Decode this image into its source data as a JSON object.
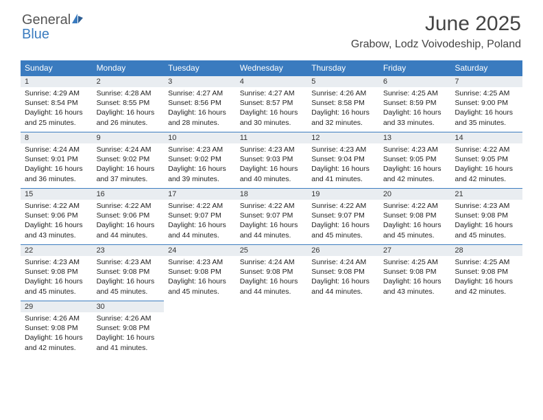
{
  "logo": {
    "top": "General",
    "bottom": "Blue"
  },
  "title": "June 2025",
  "location": "Grabow, Lodz Voivodeship, Poland",
  "colors": {
    "header_bg": "#3a7bbf",
    "header_text": "#ffffff",
    "daynum_bg": "#e9edf1",
    "rule": "#3a7bbf",
    "title_color": "#444444"
  },
  "weekdays": [
    "Sunday",
    "Monday",
    "Tuesday",
    "Wednesday",
    "Thursday",
    "Friday",
    "Saturday"
  ],
  "days": [
    {
      "n": "1",
      "sr": "Sunrise: 4:29 AM",
      "ss": "Sunset: 8:54 PM",
      "d1": "Daylight: 16 hours",
      "d2": "and 25 minutes."
    },
    {
      "n": "2",
      "sr": "Sunrise: 4:28 AM",
      "ss": "Sunset: 8:55 PM",
      "d1": "Daylight: 16 hours",
      "d2": "and 26 minutes."
    },
    {
      "n": "3",
      "sr": "Sunrise: 4:27 AM",
      "ss": "Sunset: 8:56 PM",
      "d1": "Daylight: 16 hours",
      "d2": "and 28 minutes."
    },
    {
      "n": "4",
      "sr": "Sunrise: 4:27 AM",
      "ss": "Sunset: 8:57 PM",
      "d1": "Daylight: 16 hours",
      "d2": "and 30 minutes."
    },
    {
      "n": "5",
      "sr": "Sunrise: 4:26 AM",
      "ss": "Sunset: 8:58 PM",
      "d1": "Daylight: 16 hours",
      "d2": "and 32 minutes."
    },
    {
      "n": "6",
      "sr": "Sunrise: 4:25 AM",
      "ss": "Sunset: 8:59 PM",
      "d1": "Daylight: 16 hours",
      "d2": "and 33 minutes."
    },
    {
      "n": "7",
      "sr": "Sunrise: 4:25 AM",
      "ss": "Sunset: 9:00 PM",
      "d1": "Daylight: 16 hours",
      "d2": "and 35 minutes."
    },
    {
      "n": "8",
      "sr": "Sunrise: 4:24 AM",
      "ss": "Sunset: 9:01 PM",
      "d1": "Daylight: 16 hours",
      "d2": "and 36 minutes."
    },
    {
      "n": "9",
      "sr": "Sunrise: 4:24 AM",
      "ss": "Sunset: 9:02 PM",
      "d1": "Daylight: 16 hours",
      "d2": "and 37 minutes."
    },
    {
      "n": "10",
      "sr": "Sunrise: 4:23 AM",
      "ss": "Sunset: 9:02 PM",
      "d1": "Daylight: 16 hours",
      "d2": "and 39 minutes."
    },
    {
      "n": "11",
      "sr": "Sunrise: 4:23 AM",
      "ss": "Sunset: 9:03 PM",
      "d1": "Daylight: 16 hours",
      "d2": "and 40 minutes."
    },
    {
      "n": "12",
      "sr": "Sunrise: 4:23 AM",
      "ss": "Sunset: 9:04 PM",
      "d1": "Daylight: 16 hours",
      "d2": "and 41 minutes."
    },
    {
      "n": "13",
      "sr": "Sunrise: 4:23 AM",
      "ss": "Sunset: 9:05 PM",
      "d1": "Daylight: 16 hours",
      "d2": "and 42 minutes."
    },
    {
      "n": "14",
      "sr": "Sunrise: 4:22 AM",
      "ss": "Sunset: 9:05 PM",
      "d1": "Daylight: 16 hours",
      "d2": "and 42 minutes."
    },
    {
      "n": "15",
      "sr": "Sunrise: 4:22 AM",
      "ss": "Sunset: 9:06 PM",
      "d1": "Daylight: 16 hours",
      "d2": "and 43 minutes."
    },
    {
      "n": "16",
      "sr": "Sunrise: 4:22 AM",
      "ss": "Sunset: 9:06 PM",
      "d1": "Daylight: 16 hours",
      "d2": "and 44 minutes."
    },
    {
      "n": "17",
      "sr": "Sunrise: 4:22 AM",
      "ss": "Sunset: 9:07 PM",
      "d1": "Daylight: 16 hours",
      "d2": "and 44 minutes."
    },
    {
      "n": "18",
      "sr": "Sunrise: 4:22 AM",
      "ss": "Sunset: 9:07 PM",
      "d1": "Daylight: 16 hours",
      "d2": "and 44 minutes."
    },
    {
      "n": "19",
      "sr": "Sunrise: 4:22 AM",
      "ss": "Sunset: 9:07 PM",
      "d1": "Daylight: 16 hours",
      "d2": "and 45 minutes."
    },
    {
      "n": "20",
      "sr": "Sunrise: 4:22 AM",
      "ss": "Sunset: 9:08 PM",
      "d1": "Daylight: 16 hours",
      "d2": "and 45 minutes."
    },
    {
      "n": "21",
      "sr": "Sunrise: 4:23 AM",
      "ss": "Sunset: 9:08 PM",
      "d1": "Daylight: 16 hours",
      "d2": "and 45 minutes."
    },
    {
      "n": "22",
      "sr": "Sunrise: 4:23 AM",
      "ss": "Sunset: 9:08 PM",
      "d1": "Daylight: 16 hours",
      "d2": "and 45 minutes."
    },
    {
      "n": "23",
      "sr": "Sunrise: 4:23 AM",
      "ss": "Sunset: 9:08 PM",
      "d1": "Daylight: 16 hours",
      "d2": "and 45 minutes."
    },
    {
      "n": "24",
      "sr": "Sunrise: 4:23 AM",
      "ss": "Sunset: 9:08 PM",
      "d1": "Daylight: 16 hours",
      "d2": "and 45 minutes."
    },
    {
      "n": "25",
      "sr": "Sunrise: 4:24 AM",
      "ss": "Sunset: 9:08 PM",
      "d1": "Daylight: 16 hours",
      "d2": "and 44 minutes."
    },
    {
      "n": "26",
      "sr": "Sunrise: 4:24 AM",
      "ss": "Sunset: 9:08 PM",
      "d1": "Daylight: 16 hours",
      "d2": "and 44 minutes."
    },
    {
      "n": "27",
      "sr": "Sunrise: 4:25 AM",
      "ss": "Sunset: 9:08 PM",
      "d1": "Daylight: 16 hours",
      "d2": "and 43 minutes."
    },
    {
      "n": "28",
      "sr": "Sunrise: 4:25 AM",
      "ss": "Sunset: 9:08 PM",
      "d1": "Daylight: 16 hours",
      "d2": "and 42 minutes."
    },
    {
      "n": "29",
      "sr": "Sunrise: 4:26 AM",
      "ss": "Sunset: 9:08 PM",
      "d1": "Daylight: 16 hours",
      "d2": "and 42 minutes."
    },
    {
      "n": "30",
      "sr": "Sunrise: 4:26 AM",
      "ss": "Sunset: 9:08 PM",
      "d1": "Daylight: 16 hours",
      "d2": "and 41 minutes."
    }
  ]
}
